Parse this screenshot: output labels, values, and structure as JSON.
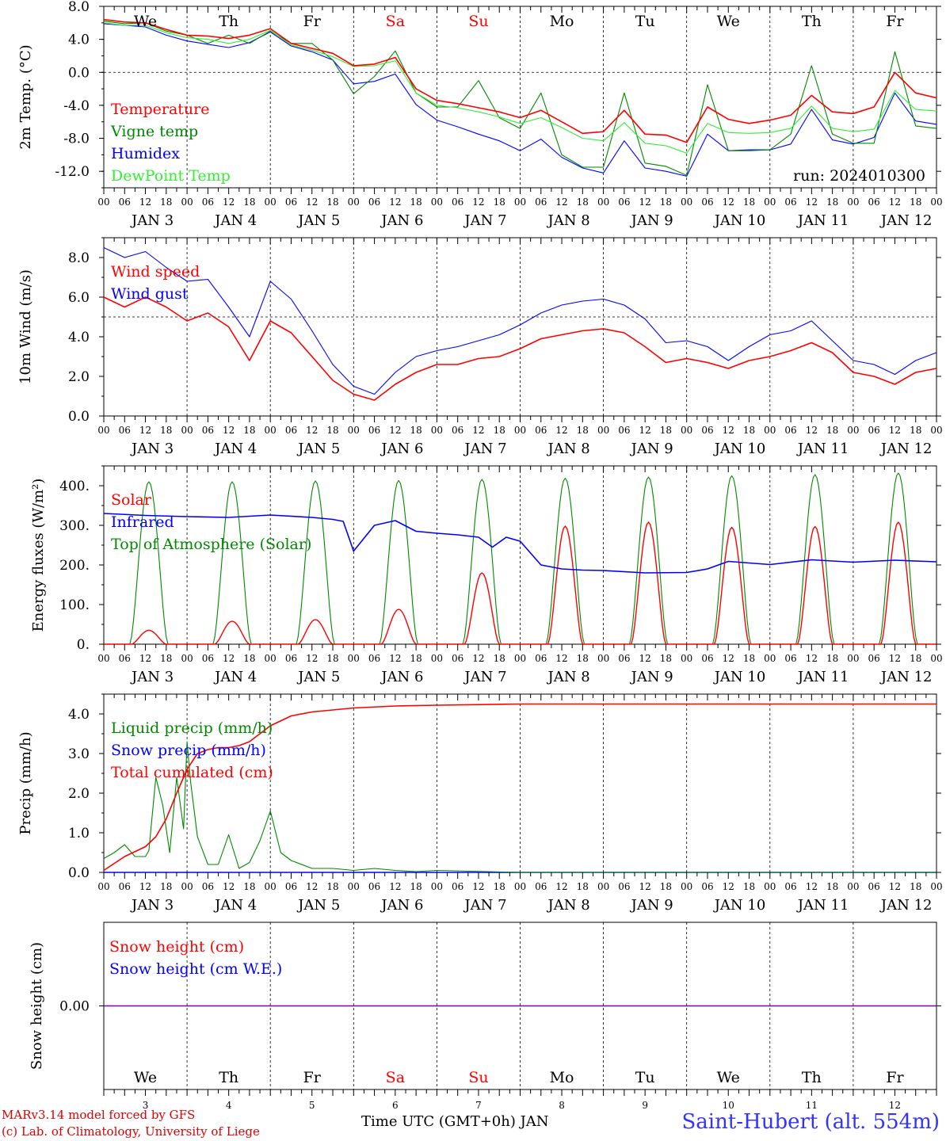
{
  "chart_data": [
    {
      "type": "line",
      "ylabel": "2m Temp. (°C)",
      "ylim": [
        -14.0,
        8.0
      ],
      "yticks": [
        "8.0",
        "4.0",
        "0.0",
        "-4.0",
        "-8.0",
        "-12.0"
      ],
      "ytick_values": [
        8,
        4,
        0,
        -4,
        -8,
        -12
      ],
      "ref_line": 0,
      "run_label": "run: 2024010300",
      "day_labels": [
        "We",
        "Th",
        "Fr",
        "Sa",
        "Su",
        "Mo",
        "Tu",
        "We",
        "Th",
        "Fr"
      ],
      "day_label_colors": [
        "#000000",
        "#000000",
        "#000000",
        "#ff0000",
        "#ff0000",
        "#000000",
        "#000000",
        "#000000",
        "#000000",
        "#000000"
      ],
      "legend_placement": "left",
      "x": [
        0,
        6,
        12,
        18,
        24,
        30,
        36,
        42,
        48,
        54,
        60,
        66,
        72,
        78,
        84,
        90,
        96,
        102,
        108,
        114,
        120,
        126,
        132,
        138,
        144,
        150,
        156,
        162,
        168,
        174,
        180,
        186,
        192,
        198,
        204,
        210,
        216,
        222,
        228,
        234,
        240
      ],
      "series": [
        {
          "name": "Temperature",
          "color": "#ff0000",
          "values": [
            6.4,
            6.1,
            6.0,
            5.2,
            4.5,
            4.4,
            4.1,
            4.5,
            5.3,
            3.5,
            2.9,
            2.3,
            0.8,
            1.0,
            1.8,
            -2.0,
            -3.4,
            -3.8,
            -4.3,
            -4.8,
            -5.5,
            -4.6,
            -6.0,
            -7.4,
            -7.2,
            -4.6,
            -7.5,
            -7.6,
            -8.5,
            -4.2,
            -5.7,
            -6.2,
            -5.8,
            -5.2,
            -2.8,
            -4.8,
            -5.0,
            -4.2,
            0.0,
            -2.5,
            -3.1
          ]
        },
        {
          "name": "Vigne temp",
          "color": "#008800",
          "values": [
            6.2,
            5.9,
            6.0,
            5.0,
            4.5,
            3.5,
            4.5,
            3.5,
            5.0,
            3.5,
            3.5,
            1.5,
            -2.6,
            -0.5,
            2.6,
            -2.5,
            -4.2,
            -4.2,
            -1.0,
            -5.5,
            -6.8,
            -2.5,
            -10.0,
            -11.5,
            -11.5,
            -2.5,
            -11.0,
            -11.4,
            -12.5,
            -1.5,
            -9.5,
            -9.5,
            -9.4,
            -7.5,
            0.8,
            -7.5,
            -8.6,
            -8.6,
            2.5,
            -6.5,
            -6.8
          ]
        },
        {
          "name": "Humidex",
          "color": "#0000ff",
          "values": [
            5.9,
            5.7,
            5.5,
            4.5,
            3.8,
            3.4,
            3.0,
            3.6,
            4.9,
            3.2,
            2.5,
            1.5,
            -1.4,
            -1.1,
            -0.2,
            -3.9,
            -5.8,
            -6.6,
            -7.5,
            -8.3,
            -9.5,
            -8.1,
            -10.3,
            -11.6,
            -12.2,
            -8.3,
            -11.6,
            -12.0,
            -12.6,
            -7.5,
            -9.5,
            -9.4,
            -9.4,
            -8.7,
            -4.5,
            -8.2,
            -8.7,
            -7.9,
            -2.5,
            -5.9,
            -6.3
          ]
        },
        {
          "name": "DewPoint Temp",
          "color": "#33ee33",
          "values": [
            6.0,
            5.7,
            5.7,
            4.8,
            4.2,
            4.0,
            3.5,
            4.0,
            5.1,
            3.3,
            2.7,
            1.9,
            0.7,
            0.8,
            1.4,
            -2.5,
            -4.0,
            -4.3,
            -4.8,
            -5.4,
            -6.2,
            -5.5,
            -6.7,
            -8.0,
            -8.3,
            -6.1,
            -8.6,
            -8.9,
            -9.8,
            -6.2,
            -7.3,
            -7.4,
            -7.3,
            -6.8,
            -4.1,
            -6.8,
            -7.2,
            -6.9,
            -2.2,
            -4.5,
            -4.7
          ]
        }
      ]
    },
    {
      "type": "line",
      "ylabel": "10m Wind (m/s)",
      "ylim": [
        0,
        9.0
      ],
      "yticks": [
        "8.0",
        "6.0",
        "4.0",
        "2.0",
        "0.0"
      ],
      "ytick_values": [
        8,
        6,
        4,
        2,
        0
      ],
      "ref_line": 5,
      "legend_placement": "left",
      "x": [
        0,
        6,
        12,
        18,
        24,
        30,
        36,
        42,
        48,
        54,
        60,
        66,
        72,
        78,
        84,
        90,
        96,
        102,
        108,
        114,
        120,
        126,
        132,
        138,
        144,
        150,
        156,
        162,
        168,
        174,
        180,
        186,
        192,
        198,
        204,
        210,
        216,
        222,
        228,
        234,
        240
      ],
      "series": [
        {
          "name": "Wind speed",
          "color": "#ff0000",
          "values": [
            6.0,
            5.5,
            6.0,
            5.5,
            4.8,
            5.2,
            4.5,
            2.8,
            4.8,
            4.2,
            3.0,
            1.8,
            1.1,
            0.8,
            1.6,
            2.2,
            2.6,
            2.6,
            2.9,
            3.0,
            3.4,
            3.9,
            4.1,
            4.3,
            4.4,
            4.2,
            3.5,
            2.7,
            2.9,
            2.7,
            2.4,
            2.8,
            3.0,
            3.3,
            3.7,
            3.2,
            2.2,
            2.0,
            1.6,
            2.2,
            2.4
          ]
        },
        {
          "name": "Wind gust",
          "color": "#0000ff",
          "values": [
            8.5,
            8.0,
            8.3,
            7.5,
            6.8,
            6.9,
            5.5,
            4.0,
            6.8,
            5.9,
            4.3,
            2.6,
            1.5,
            1.1,
            2.2,
            3.0,
            3.3,
            3.5,
            3.8,
            4.1,
            4.6,
            5.2,
            5.6,
            5.8,
            5.9,
            5.6,
            4.9,
            3.7,
            3.8,
            3.5,
            2.8,
            3.5,
            4.1,
            4.3,
            4.8,
            3.8,
            2.8,
            2.6,
            2.1,
            2.8,
            3.2
          ]
        }
      ]
    },
    {
      "type": "line",
      "ylabel": "Energy fluxes (W/m²)",
      "ylim": [
        0,
        450
      ],
      "yticks": [
        "400.",
        "300.",
        "200.",
        "100.",
        "0."
      ],
      "ytick_values": [
        400,
        300,
        200,
        100,
        0
      ],
      "legend_placement": "left",
      "days": [
        "JAN 3",
        "JAN 4",
        "JAN 5",
        "JAN 6",
        "JAN 7",
        "JAN 8",
        "JAN 9",
        "JAN 10",
        "JAN 11",
        "JAN 12"
      ],
      "series": [
        {
          "name": "Solar",
          "color": "#ff0000",
          "daily_peak": [
            35,
            58,
            62,
            88,
            180,
            298,
            308,
            295,
            297,
            308
          ]
        },
        {
          "name": "Infrared",
          "color": "#0000ff",
          "x": [
            0,
            12,
            24,
            36,
            48,
            60,
            66,
            69,
            72,
            78,
            84,
            90,
            96,
            102,
            108,
            112,
            116,
            120,
            126,
            132,
            138,
            144,
            156,
            168,
            174,
            180,
            192,
            204,
            216,
            228,
            240
          ],
          "values": [
            330,
            325,
            322,
            320,
            326,
            320,
            315,
            310,
            235,
            300,
            312,
            285,
            280,
            276,
            270,
            245,
            270,
            260,
            200,
            190,
            187,
            186,
            180,
            181,
            190,
            209,
            201,
            213,
            207,
            212,
            208
          ]
        },
        {
          "name": "Top of Atmosphere (Solar)",
          "color": "#008800",
          "daily_peak": [
            410,
            410,
            412,
            413,
            416,
            419,
            422,
            425,
            428,
            432
          ]
        }
      ]
    },
    {
      "type": "line",
      "ylabel": "Precip (mm/h)",
      "ylim": [
        0,
        4.5
      ],
      "yticks": [
        "4.0",
        "3.0",
        "2.0",
        "1.0",
        "0.0"
      ],
      "ytick_values": [
        4,
        3,
        2,
        1,
        0
      ],
      "legend_placement": "left",
      "series": [
        {
          "name": "Liquid precip (mm/h)",
          "color": "#008800",
          "x": [
            0,
            3,
            6,
            9,
            12,
            13,
            15,
            17,
            19,
            21,
            23,
            24,
            25,
            27,
            30,
            33,
            36,
            39,
            42,
            45,
            48,
            51,
            54,
            60,
            66,
            72,
            78,
            84,
            90,
            96,
            120,
            240
          ],
          "values": [
            0.35,
            0.5,
            0.7,
            0.4,
            0.4,
            0.55,
            2.4,
            1.7,
            0.5,
            2.4,
            1.1,
            3.3,
            2.3,
            0.9,
            0.2,
            0.2,
            0.95,
            0.1,
            0.25,
            0.8,
            1.55,
            0.5,
            0.3,
            0.1,
            0.1,
            0.05,
            0.1,
            0.05,
            0.02,
            0.05,
            0.0,
            0.0
          ]
        },
        {
          "name": "Snow precip (mm/h)",
          "color": "#0000ff",
          "x": [
            0,
            240
          ],
          "values": [
            0.0,
            0.0
          ]
        },
        {
          "name": "Total cumulated (cm)",
          "color": "#ff0000",
          "x": [
            0,
            6,
            12,
            15,
            18,
            21,
            24,
            27,
            30,
            33,
            36,
            39,
            42,
            48,
            54,
            60,
            72,
            84,
            96,
            120,
            240
          ],
          "values": [
            0.05,
            0.4,
            0.65,
            0.9,
            1.35,
            2.0,
            2.6,
            3.0,
            3.1,
            3.15,
            3.15,
            3.2,
            3.3,
            3.7,
            3.95,
            4.05,
            4.15,
            4.2,
            4.22,
            4.25,
            4.25
          ]
        }
      ]
    },
    {
      "type": "line",
      "ylabel": "Snow height (cm)",
      "ylim": [
        -1,
        1
      ],
      "yticks": [
        "0.00"
      ],
      "ytick_values": [
        0
      ],
      "legend_placement": "left",
      "day_labels": [
        "We",
        "Th",
        "Fr",
        "Sa",
        "Su",
        "Mo",
        "Tu",
        "We",
        "Th",
        "Fr"
      ],
      "day_label_colors": [
        "#000000",
        "#000000",
        "#000000",
        "#ff0000",
        "#ff0000",
        "#000000",
        "#000000",
        "#000000",
        "#000000",
        "#000000"
      ],
      "day_numbers": [
        "3",
        "4",
        "5",
        "6",
        "7",
        "8",
        "9",
        "10",
        "11",
        "12"
      ],
      "series": [
        {
          "name": "Snow height (cm)",
          "color": "#ff0000",
          "x": [
            0,
            240
          ],
          "values": [
            0,
            0
          ]
        },
        {
          "name": "Snow height (cm W.E.)",
          "color": "#0000ff",
          "x": [
            0,
            240
          ],
          "values": [
            0,
            0
          ]
        }
      ]
    }
  ],
  "xaxis": {
    "hour_labels": [
      "00",
      "06",
      "12",
      "18"
    ],
    "final_hour_label": "00",
    "date_labels": [
      "JAN 3",
      "JAN 4",
      "JAN 5",
      "JAN 6",
      "JAN 7",
      "JAN 8",
      "JAN 9",
      "JAN 10",
      "JAN 11",
      "JAN 12"
    ],
    "time_label": "Time UTC (GMT+0h) JAN"
  },
  "footer": {
    "credit_line1": "MARv3.14 model forced by GFS",
    "credit_line2": "(c) Lab. of Climatology, University of Liege",
    "station": "Saint-Hubert (alt. 554m)"
  }
}
